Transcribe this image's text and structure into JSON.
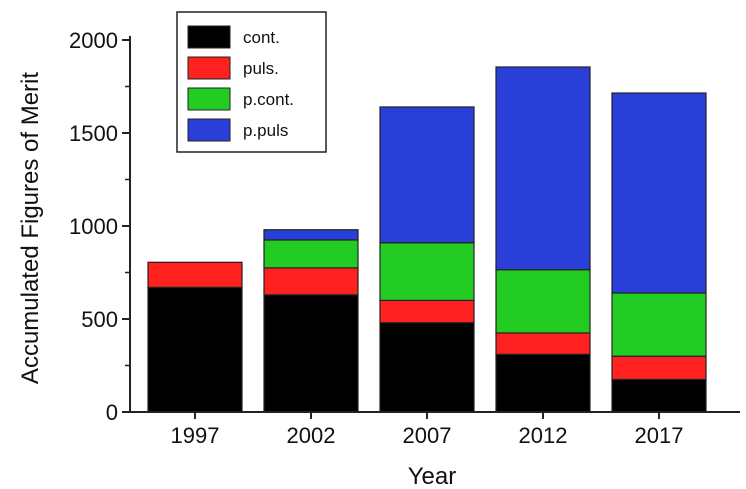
{
  "chart_data": {
    "type": "bar",
    "stacked": true,
    "categories": [
      "1997",
      "2002",
      "2007",
      "2012",
      "2017"
    ],
    "series": [
      {
        "name": "cont.",
        "color": "#000000",
        "values": [
          670,
          630,
          480,
          310,
          175
        ]
      },
      {
        "name": "puls.",
        "color": "#ff2020",
        "values": [
          135,
          145,
          120,
          115,
          125
        ]
      },
      {
        "name": "p.cont.",
        "color": "#22cc22",
        "values": [
          0,
          150,
          310,
          340,
          340
        ]
      },
      {
        "name": "p.puls",
        "color": "#2a3fd8",
        "values": [
          0,
          55,
          730,
          1090,
          1075
        ]
      }
    ],
    "xlabel": "Year",
    "ylabel": "Accumulated Figures of Merit",
    "yticks": [
      0,
      500,
      1000,
      1500,
      2000
    ],
    "ylim": [
      0,
      2000
    ],
    "legend": "top-left",
    "grid": false
  }
}
